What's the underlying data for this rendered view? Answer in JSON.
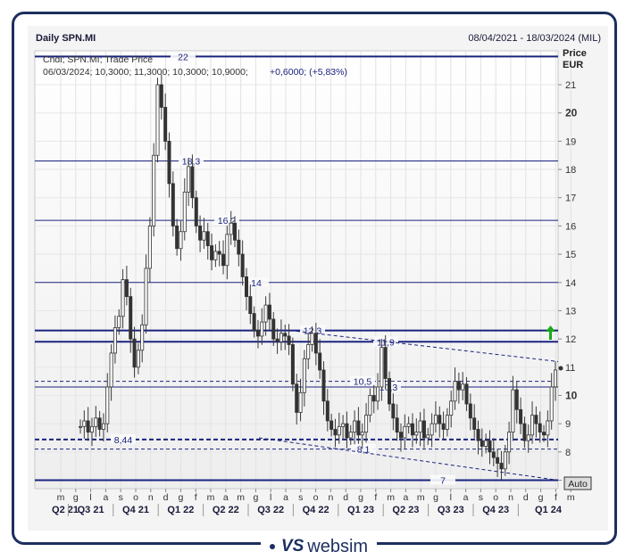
{
  "header": {
    "title": "Daily SPN.MI",
    "date_range": "08/04/2021 - 18/03/2024 (MIL)",
    "legend_line1": "Cndl; SPN.MI; Trade Price",
    "legend_ohlc": "06/03/2024; 10,3000; 11,3000; 10,3000; 10,9000;",
    "legend_change": "+0,6000; (+5,83%)"
  },
  "axis": {
    "price_label": "Price",
    "currency_label": "EUR",
    "auto_label": "Auto"
  },
  "brand": {
    "logo": "VS",
    "name": "websim"
  },
  "colors": {
    "line": "#1a237e",
    "candle": "#444444",
    "arrow": "#1aaa1a",
    "frame": "#1c2f5e"
  },
  "chart_data": {
    "type": "candlestick",
    "ylim": [
      6.7,
      22.2
    ],
    "y_ticks": [
      "7",
      "8",
      "9",
      "10",
      "11",
      "12",
      "13",
      "14",
      "15",
      "16",
      "17",
      "18",
      "19",
      "20",
      "21"
    ],
    "y_ticks_bold": [
      "10",
      "20"
    ],
    "months": [
      "m",
      "g",
      "l",
      "a",
      "s",
      "o",
      "n",
      "d",
      "g",
      "f",
      "m",
      "a",
      "m",
      "g",
      "l",
      "a",
      "s",
      "o",
      "n",
      "d",
      "g",
      "f",
      "m",
      "a",
      "m",
      "g",
      "l",
      "a",
      "s",
      "o",
      "n",
      "d",
      "g",
      "f",
      "m"
    ],
    "quarters": [
      "Q2 21",
      "Q3 21",
      "Q4 21",
      "Q1 22",
      "Q2 22",
      "Q3 22",
      "Q4 22",
      "Q1 23",
      "Q2 23",
      "Q3 23",
      "Q4 23",
      "Q1 24"
    ],
    "horizontal_levels": [
      {
        "label": "22",
        "value": 22.0,
        "style": "solid-thick"
      },
      {
        "label": "18,3",
        "value": 18.3,
        "style": "solid"
      },
      {
        "label": "16,2",
        "value": 16.2,
        "style": "solid"
      },
      {
        "label": "14",
        "value": 14.0,
        "style": "solid"
      },
      {
        "label": "12,3",
        "value": 12.3,
        "style": "solid-thick"
      },
      {
        "label": "11,9",
        "value": 11.9,
        "style": "solid-thick"
      },
      {
        "label": "10,5",
        "value": 10.5,
        "style": "dashed"
      },
      {
        "label": "10,3",
        "value": 10.3,
        "style": "solid"
      },
      {
        "label": "8,44",
        "value": 8.44,
        "style": "dashed-thick"
      },
      {
        "label": "8,1",
        "value": 8.1,
        "style": "dashed"
      },
      {
        "label": "7",
        "value": 7.0,
        "style": "solid-thick"
      }
    ],
    "trendlines": [
      {
        "from": [
          "Q3 22",
          12.3
        ],
        "to": [
          "Q1 24",
          11.2
        ]
      },
      {
        "from": [
          "Q3 22",
          8.5
        ],
        "to": [
          "Q1 24",
          7.0
        ]
      }
    ],
    "close_series": [
      8.9,
      9.1,
      8.7,
      8.9,
      9.2,
      8.8,
      9.0,
      10.3,
      11.5,
      12.4,
      12.8,
      14.1,
      13.5,
      12.0,
      11.0,
      11.6,
      12.5,
      14.5,
      16.0,
      18.5,
      21.0,
      20.2,
      19.0,
      17.5,
      16.0,
      15.2,
      15.8,
      17.2,
      18.1,
      17.0,
      16.0,
      15.5,
      15.8,
      15.3,
      14.8,
      15.1,
      15.0,
      14.6,
      15.7,
      16.1,
      15.5,
      15.0,
      14.2,
      13.5,
      12.9,
      12.3,
      12.1,
      12.6,
      13.2,
      12.7,
      12.0,
      11.9,
      12.2,
      12.1,
      11.8,
      10.4,
      9.4,
      10.1,
      11.3,
      11.8,
      12.2,
      11.5,
      10.9,
      9.8,
      9.1,
      8.8,
      8.6,
      8.9,
      9.0,
      8.5,
      8.7,
      9.1,
      8.6,
      8.7,
      9.3,
      10.0,
      9.8,
      10.3,
      11.7,
      10.6,
      9.7,
      9.2,
      8.7,
      8.5,
      8.9,
      9.0,
      8.6,
      8.7,
      9.1,
      8.5,
      8.6,
      9.0,
      9.3,
      9.0,
      8.8,
      9.3,
      9.8,
      10.5,
      10.2,
      10.4,
      9.7,
      9.2,
      8.8,
      8.4,
      8.2,
      8.4,
      8.0,
      7.8,
      7.6,
      7.4,
      8.0,
      8.7,
      10.2,
      9.5,
      9.0,
      8.4,
      8.6,
      9.3,
      9.0,
      8.7,
      8.6,
      9.1,
      10.3,
      10.9
    ]
  }
}
